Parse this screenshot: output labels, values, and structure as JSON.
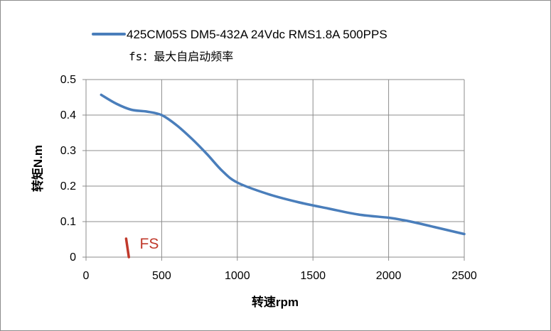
{
  "chart_data": {
    "type": "line",
    "series": [
      {
        "name": "425CM05S DM5-432A 24Vdc RMS1.8A 500PPS",
        "color": "#4A7EBB",
        "x": [
          100,
          200,
          300,
          400,
          500,
          600,
          700,
          800,
          900,
          1000,
          1200,
          1400,
          1600,
          1800,
          2000,
          2100,
          2200,
          2300,
          2400,
          2500
        ],
        "y": [
          0.457,
          0.432,
          0.415,
          0.41,
          0.4,
          0.371,
          0.333,
          0.29,
          0.243,
          0.21,
          0.178,
          0.155,
          0.137,
          0.12,
          0.111,
          0.104,
          0.095,
          0.085,
          0.075,
          0.065
        ]
      }
    ],
    "legend_note": "fs：最大自启动频率",
    "xlabel": "转速rpm",
    "ylabel": "转矩N.m",
    "xlim": [
      0,
      2500
    ],
    "ylim": [
      0,
      0.5
    ],
    "xticks": [
      "0",
      "500",
      "1000",
      "1500",
      "2000",
      "2500"
    ],
    "yticks": [
      "0",
      "0.1",
      "0.2",
      "0.3",
      "0.4",
      "0.5"
    ],
    "xtick_values": [
      0,
      500,
      1000,
      1500,
      2000,
      2500
    ],
    "ytick_values": [
      0,
      0.1,
      0.2,
      0.3,
      0.4,
      0.5
    ],
    "grid": true,
    "legend_position": "top",
    "annotation": {
      "text": "FS",
      "color": "#C0392B",
      "mark_x": [
        265,
        283
      ],
      "mark_y": [
        0.052,
        0.0
      ],
      "text_x": 355,
      "text_y": 0.04
    }
  }
}
